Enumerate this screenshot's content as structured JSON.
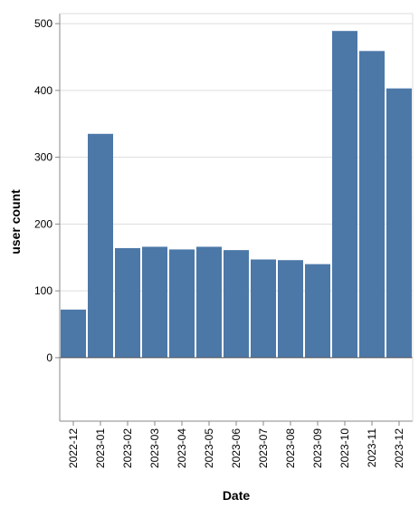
{
  "chart_data": {
    "type": "bar",
    "categories": [
      "2022-12",
      "2023-01",
      "2023-02",
      "2023-03",
      "2023-04",
      "2023-05",
      "2023-06",
      "2023-07",
      "2023-08",
      "2023-09",
      "2023-10",
      "2023-11",
      "2023-12"
    ],
    "values": [
      72,
      335,
      164,
      166,
      162,
      166,
      161,
      147,
      146,
      140,
      489,
      459,
      403
    ],
    "xlabel": "Date",
    "ylabel": "user count",
    "ylim": [
      -95,
      515
    ],
    "yticks": [
      0,
      100,
      200,
      300,
      400,
      500
    ],
    "grid": true,
    "bar_color": "#4c78a8"
  }
}
